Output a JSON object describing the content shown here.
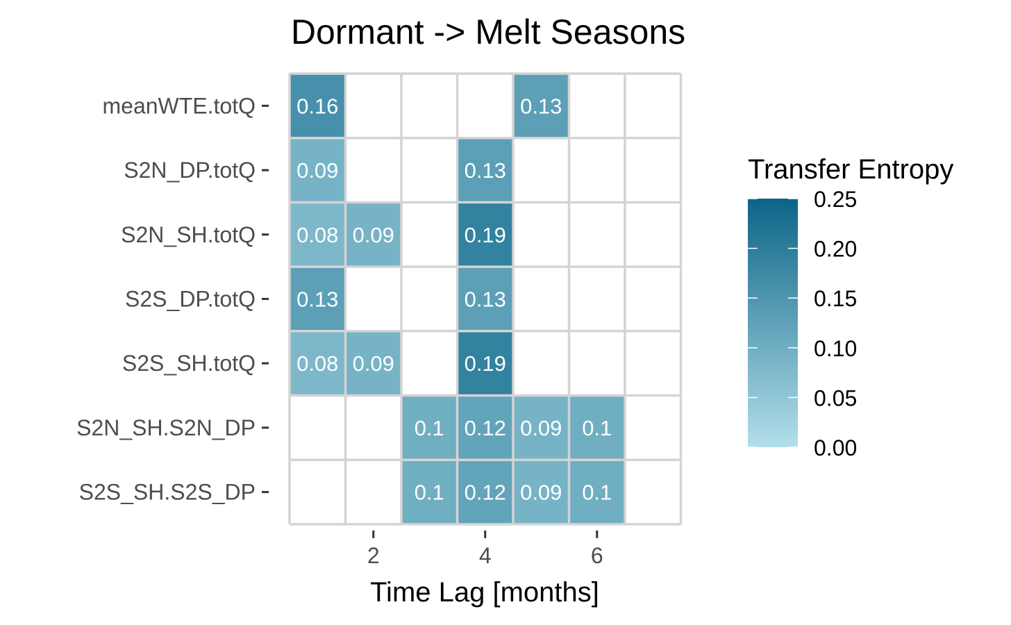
{
  "chart_data": {
    "type": "heatmap",
    "title": "Dormant -> Melt Seasons",
    "xlabel": "Time Lag [months]",
    "ylabel": "",
    "x_values": [
      1,
      2,
      3,
      4,
      5,
      6,
      7
    ],
    "x_ticks": [
      2,
      4,
      6
    ],
    "x_tick_labels": [
      "2",
      "4",
      "6"
    ],
    "y_categories": [
      "meanWTE.totQ",
      "S2N_DP.totQ",
      "S2N_SH.totQ",
      "S2S_DP.totQ",
      "S2S_SH.totQ",
      "S2N_SH.S2N_DP",
      "S2S_SH.S2S_DP"
    ],
    "cells": [
      {
        "y": "meanWTE.totQ",
        "x": 1,
        "value": 0.16,
        "label": "0.16"
      },
      {
        "y": "meanWTE.totQ",
        "x": 5,
        "value": 0.13,
        "label": "0.13"
      },
      {
        "y": "S2N_DP.totQ",
        "x": 1,
        "value": 0.09,
        "label": "0.09"
      },
      {
        "y": "S2N_DP.totQ",
        "x": 4,
        "value": 0.13,
        "label": "0.13"
      },
      {
        "y": "S2N_SH.totQ",
        "x": 1,
        "value": 0.08,
        "label": "0.08"
      },
      {
        "y": "S2N_SH.totQ",
        "x": 2,
        "value": 0.09,
        "label": "0.09"
      },
      {
        "y": "S2N_SH.totQ",
        "x": 4,
        "value": 0.19,
        "label": "0.19"
      },
      {
        "y": "S2S_DP.totQ",
        "x": 1,
        "value": 0.13,
        "label": "0.13"
      },
      {
        "y": "S2S_DP.totQ",
        "x": 4,
        "value": 0.13,
        "label": "0.13"
      },
      {
        "y": "S2S_SH.totQ",
        "x": 1,
        "value": 0.08,
        "label": "0.08"
      },
      {
        "y": "S2S_SH.totQ",
        "x": 2,
        "value": 0.09,
        "label": "0.09"
      },
      {
        "y": "S2S_SH.totQ",
        "x": 4,
        "value": 0.19,
        "label": "0.19"
      },
      {
        "y": "S2N_SH.S2N_DP",
        "x": 3,
        "value": 0.1,
        "label": "0.1"
      },
      {
        "y": "S2N_SH.S2N_DP",
        "x": 4,
        "value": 0.12,
        "label": "0.12"
      },
      {
        "y": "S2N_SH.S2N_DP",
        "x": 5,
        "value": 0.09,
        "label": "0.09"
      },
      {
        "y": "S2N_SH.S2N_DP",
        "x": 6,
        "value": 0.1,
        "label": "0.1"
      },
      {
        "y": "S2S_SH.S2S_DP",
        "x": 3,
        "value": 0.1,
        "label": "0.1"
      },
      {
        "y": "S2S_SH.S2S_DP",
        "x": 4,
        "value": 0.12,
        "label": "0.12"
      },
      {
        "y": "S2S_SH.S2S_DP",
        "x": 5,
        "value": 0.09,
        "label": "0.09"
      },
      {
        "y": "S2S_SH.S2S_DP",
        "x": 6,
        "value": 0.1,
        "label": "0.1"
      }
    ],
    "legend": {
      "title": "Transfer Entropy",
      "placement": "right",
      "min": 0.0,
      "max": 0.25,
      "breaks": [
        0.0,
        0.05,
        0.1,
        0.15,
        0.2,
        0.25
      ],
      "break_labels": [
        "0.00",
        "0.05",
        "0.10",
        "0.15",
        "0.20",
        "0.25"
      ]
    },
    "colors": {
      "low": "#b3dfea",
      "high": "#0b6487",
      "grid": "#d4d4d4",
      "empty_cell": "#ffffff",
      "tick": "#333333"
    },
    "grid": true
  }
}
